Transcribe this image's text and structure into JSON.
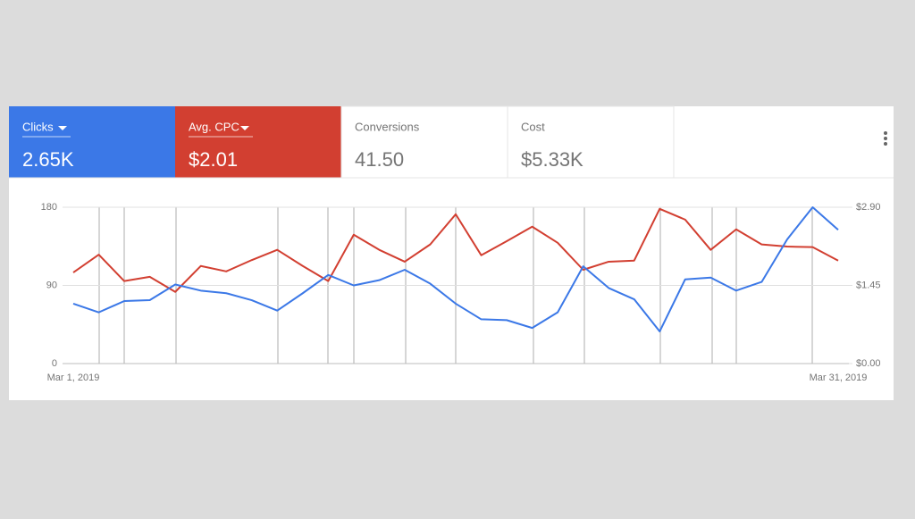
{
  "scorecards": [
    {
      "value": "2.65K"
    },
    {
      "value": "$2.01"
    },
    {
      "label": "Conversions",
      "value": "41.50"
    },
    {
      "label": "Cost",
      "value": "$5.33K"
    }
  ],
  "chart_data": {
    "type": "line",
    "categories": [
      "Mar 1, 2019",
      null,
      null,
      null,
      null,
      null,
      null,
      null,
      null,
      null,
      null,
      null,
      null,
      null,
      null,
      null,
      null,
      null,
      null,
      null,
      null,
      null,
      null,
      null,
      null,
      null,
      null,
      null,
      null,
      null,
      "Mar 31, 2019"
    ],
    "series": [
      {
        "name": "Clicks",
        "color": "#3b78e7",
        "values": [
          69,
          59,
          72,
          73,
          91,
          84,
          81,
          73,
          61,
          81,
          102,
          90,
          96,
          108,
          92,
          69,
          51,
          50,
          41,
          59,
          112,
          87,
          74,
          37,
          97,
          99,
          84,
          94,
          143,
          180,
          154
        ]
      },
      {
        "name": "Avg. CPC",
        "color": "#d23f31",
        "axis": "y2",
        "values": [
          1.69,
          2.02,
          1.53,
          1.61,
          1.33,
          1.81,
          1.71,
          1.92,
          2.11,
          1.81,
          1.53,
          2.39,
          2.11,
          1.89,
          2.21,
          2.77,
          2.01,
          2.27,
          2.54,
          2.24,
          1.74,
          1.89,
          1.91,
          2.87,
          2.67,
          2.11,
          2.49,
          2.21,
          2.17,
          2.16,
          1.91
        ]
      }
    ],
    "ylim": [
      0,
      180
    ],
    "yticks": [
      0,
      90,
      180
    ],
    "y2lim": [
      0,
      2.9
    ],
    "y2ticks": [
      {
        "value": 0,
        "label": "$0.00"
      },
      {
        "value": 1.45,
        "label": "$1.45"
      },
      {
        "value": 2.9,
        "label": "$2.90"
      }
    ],
    "grid": true
  }
}
